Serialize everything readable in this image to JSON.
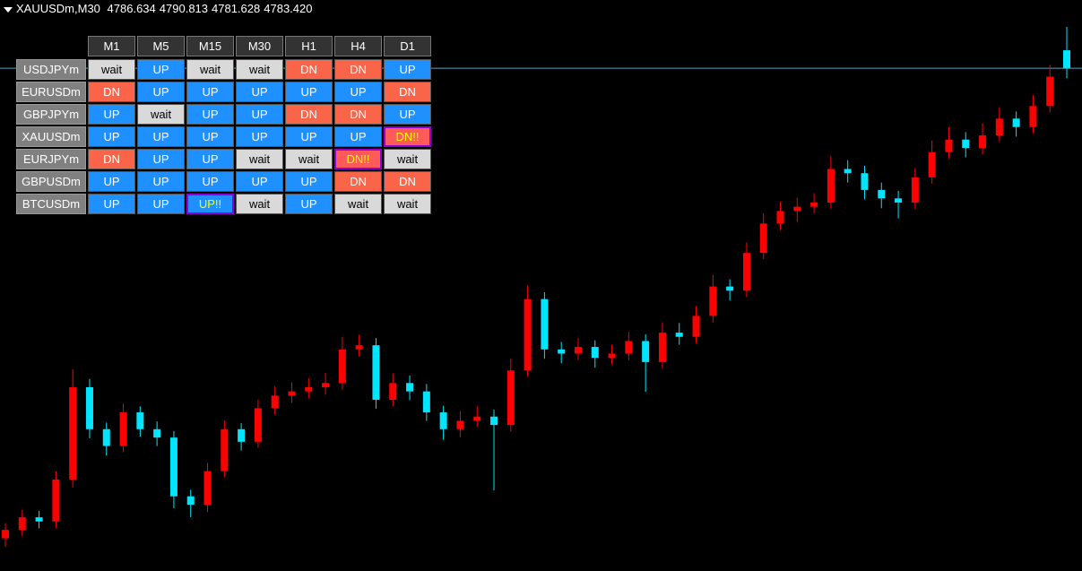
{
  "header": {
    "symbol": "XAUUSDm,M30",
    "open": "4786.634",
    "high": "4790.813",
    "low": "4781.628",
    "close": "4783.420"
  },
  "table": {
    "columns": [
      "M1",
      "M5",
      "M15",
      "M30",
      "H1",
      "H4",
      "D1"
    ],
    "rows": [
      {
        "symbol": "USDJPYm",
        "cells": [
          {
            "text": "wait",
            "bg": "#d9d9d9",
            "fg": "#000000"
          },
          {
            "text": "UP",
            "bg": "#1e90ff",
            "fg": "#ffffff"
          },
          {
            "text": "wait",
            "bg": "#d9d9d9",
            "fg": "#000000"
          },
          {
            "text": "wait",
            "bg": "#d9d9d9",
            "fg": "#000000"
          },
          {
            "text": "DN",
            "bg": "#fa6448",
            "fg": "#ffffff"
          },
          {
            "text": "DN",
            "bg": "#fa6448",
            "fg": "#ffffff"
          },
          {
            "text": "UP",
            "bg": "#1e90ff",
            "fg": "#ffffff"
          }
        ]
      },
      {
        "symbol": "EURUSDm",
        "cells": [
          {
            "text": "DN",
            "bg": "#fa6448",
            "fg": "#ffffff"
          },
          {
            "text": "UP",
            "bg": "#1e90ff",
            "fg": "#ffffff"
          },
          {
            "text": "UP",
            "bg": "#1e90ff",
            "fg": "#ffffff"
          },
          {
            "text": "UP",
            "bg": "#1e90ff",
            "fg": "#ffffff"
          },
          {
            "text": "UP",
            "bg": "#1e90ff",
            "fg": "#ffffff"
          },
          {
            "text": "UP",
            "bg": "#1e90ff",
            "fg": "#ffffff"
          },
          {
            "text": "DN",
            "bg": "#fa6448",
            "fg": "#ffffff"
          }
        ]
      },
      {
        "symbol": "GBPJPYm",
        "cells": [
          {
            "text": "UP",
            "bg": "#1e90ff",
            "fg": "#ffffff"
          },
          {
            "text": "wait",
            "bg": "#d9d9d9",
            "fg": "#000000"
          },
          {
            "text": "UP",
            "bg": "#1e90ff",
            "fg": "#ffffff"
          },
          {
            "text": "UP",
            "bg": "#1e90ff",
            "fg": "#ffffff"
          },
          {
            "text": "DN",
            "bg": "#fa6448",
            "fg": "#ffffff"
          },
          {
            "text": "DN",
            "bg": "#fa6448",
            "fg": "#ffffff"
          },
          {
            "text": "UP",
            "bg": "#1e90ff",
            "fg": "#ffffff"
          }
        ]
      },
      {
        "symbol": "XAUUSDm",
        "cells": [
          {
            "text": "UP",
            "bg": "#1e90ff",
            "fg": "#ffffff"
          },
          {
            "text": "UP",
            "bg": "#1e90ff",
            "fg": "#ffffff"
          },
          {
            "text": "UP",
            "bg": "#1e90ff",
            "fg": "#ffffff"
          },
          {
            "text": "UP",
            "bg": "#1e90ff",
            "fg": "#ffffff"
          },
          {
            "text": "UP",
            "bg": "#1e90ff",
            "fg": "#ffffff"
          },
          {
            "text": "UP",
            "bg": "#1e90ff",
            "fg": "#ffffff"
          },
          {
            "text": "DN!!",
            "bg": "#ff5a5a",
            "fg": "#ffff00",
            "border": "#9400d3"
          }
        ]
      },
      {
        "symbol": "EURJPYm",
        "cells": [
          {
            "text": "DN",
            "bg": "#fa6448",
            "fg": "#ffffff"
          },
          {
            "text": "UP",
            "bg": "#1e90ff",
            "fg": "#ffffff"
          },
          {
            "text": "UP",
            "bg": "#1e90ff",
            "fg": "#ffffff"
          },
          {
            "text": "wait",
            "bg": "#d9d9d9",
            "fg": "#000000"
          },
          {
            "text": "wait",
            "bg": "#d9d9d9",
            "fg": "#000000"
          },
          {
            "text": "DN!!",
            "bg": "#ff5a5a",
            "fg": "#ffff00",
            "border": "#9400d3"
          },
          {
            "text": "wait",
            "bg": "#d9d9d9",
            "fg": "#000000"
          }
        ]
      },
      {
        "symbol": "GBPUSDm",
        "cells": [
          {
            "text": "UP",
            "bg": "#1e90ff",
            "fg": "#ffffff"
          },
          {
            "text": "UP",
            "bg": "#1e90ff",
            "fg": "#ffffff"
          },
          {
            "text": "UP",
            "bg": "#1e90ff",
            "fg": "#ffffff"
          },
          {
            "text": "UP",
            "bg": "#1e90ff",
            "fg": "#ffffff"
          },
          {
            "text": "UP",
            "bg": "#1e90ff",
            "fg": "#ffffff"
          },
          {
            "text": "DN",
            "bg": "#fa6448",
            "fg": "#ffffff"
          },
          {
            "text": "DN",
            "bg": "#fa6448",
            "fg": "#ffffff"
          }
        ]
      },
      {
        "symbol": "BTCUSDm",
        "cells": [
          {
            "text": "UP",
            "bg": "#1e90ff",
            "fg": "#ffffff"
          },
          {
            "text": "UP",
            "bg": "#1e90ff",
            "fg": "#ffffff"
          },
          {
            "text": "UP!!",
            "bg": "#1e90ff",
            "fg": "#ffff00",
            "border": "#9400d3"
          },
          {
            "text": "wait",
            "bg": "#d9d9d9",
            "fg": "#000000"
          },
          {
            "text": "UP",
            "bg": "#1e90ff",
            "fg": "#ffffff"
          },
          {
            "text": "wait",
            "bg": "#d9d9d9",
            "fg": "#000000"
          },
          {
            "text": "wait",
            "bg": "#d9d9d9",
            "fg": "#000000"
          }
        ]
      }
    ]
  },
  "chart": {
    "type": "candlestick",
    "up_color": "#ff0000",
    "down_color": "#00e5ff",
    "price_line_color": "#5f9fbf",
    "candles": [
      [
        4699.42,
        4702.1,
        4697.9,
        4700.92
      ],
      [
        4700.92,
        4704.5,
        4699.8,
        4703.17
      ],
      [
        4703.17,
        4704.3,
        4701.2,
        4702.42
      ],
      [
        4702.42,
        4711.4,
        4701.3,
        4709.92
      ],
      [
        4709.92,
        4729.6,
        4708.5,
        4726.42
      ],
      [
        4726.42,
        4727.9,
        4717.3,
        4718.92
      ],
      [
        4718.92,
        4720.1,
        4714.2,
        4715.92
      ],
      [
        4715.92,
        4723.5,
        4714.8,
        4721.92
      ],
      [
        4721.92,
        4723.0,
        4717.6,
        4718.92
      ],
      [
        4718.92,
        4720.3,
        4715.9,
        4717.42
      ],
      [
        4717.42,
        4718.6,
        4704.8,
        4706.92
      ],
      [
        4706.92,
        4708.1,
        4703.2,
        4705.42
      ],
      [
        4705.42,
        4712.9,
        4704.1,
        4711.42
      ],
      [
        4711.42,
        4720.5,
        4710.3,
        4718.92
      ],
      [
        4718.92,
        4720.0,
        4715.1,
        4716.67
      ],
      [
        4716.67,
        4724.2,
        4715.6,
        4722.67
      ],
      [
        4722.67,
        4726.6,
        4721.5,
        4724.92
      ],
      [
        4724.92,
        4727.3,
        4723.6,
        4725.67
      ],
      [
        4725.67,
        4728.0,
        4724.4,
        4726.42
      ],
      [
        4726.42,
        4729.0,
        4725.1,
        4727.17
      ],
      [
        4727.17,
        4735.4,
        4726.0,
        4733.17
      ],
      [
        4733.17,
        4735.8,
        4731.9,
        4733.92
      ],
      [
        4733.92,
        4735.2,
        4722.6,
        4724.17
      ],
      [
        4724.17,
        4728.9,
        4723.0,
        4727.17
      ],
      [
        4727.17,
        4728.5,
        4724.1,
        4725.67
      ],
      [
        4725.67,
        4727.0,
        4720.4,
        4721.92
      ],
      [
        4721.92,
        4723.1,
        4717.0,
        4718.92
      ],
      [
        4718.92,
        4722.1,
        4717.5,
        4720.42
      ],
      [
        4720.42,
        4723.0,
        4719.3,
        4721.17
      ],
      [
        4721.17,
        4722.4,
        4708.0,
        4719.67
      ],
      [
        4719.67,
        4731.5,
        4718.5,
        4729.42
      ],
      [
        4729.42,
        4744.6,
        4728.3,
        4742.17
      ],
      [
        4742.17,
        4743.4,
        4731.5,
        4733.17
      ],
      [
        4733.17,
        4734.5,
        4730.7,
        4732.42
      ],
      [
        4732.42,
        4735.2,
        4731.3,
        4733.62
      ],
      [
        4733.62,
        4734.8,
        4729.9,
        4731.67
      ],
      [
        4731.67,
        4734.0,
        4730.5,
        4732.42
      ],
      [
        4732.42,
        4736.3,
        4731.2,
        4734.67
      ],
      [
        4734.67,
        4735.9,
        4725.6,
        4730.92
      ],
      [
        4730.92,
        4738.0,
        4729.8,
        4736.17
      ],
      [
        4736.17,
        4737.9,
        4734.0,
        4735.42
      ],
      [
        4735.42,
        4740.9,
        4734.3,
        4739.17
      ],
      [
        4739.17,
        4746.5,
        4738.0,
        4744.42
      ],
      [
        4744.42,
        4745.7,
        4741.9,
        4743.67
      ],
      [
        4743.67,
        4752.3,
        4742.5,
        4750.42
      ],
      [
        4750.42,
        4757.5,
        4749.3,
        4755.67
      ],
      [
        4755.67,
        4759.6,
        4754.5,
        4757.92
      ],
      [
        4757.92,
        4760.3,
        4756.0,
        4758.67
      ],
      [
        4758.67,
        4761.1,
        4757.5,
        4759.42
      ],
      [
        4759.42,
        4767.7,
        4758.3,
        4765.42
      ],
      [
        4765.42,
        4767.0,
        4763.0,
        4764.67
      ],
      [
        4764.67,
        4766.0,
        4760.0,
        4761.67
      ],
      [
        4761.67,
        4763.0,
        4758.4,
        4760.17
      ],
      [
        4760.17,
        4761.5,
        4756.6,
        4759.42
      ],
      [
        4759.42,
        4765.6,
        4758.3,
        4763.92
      ],
      [
        4763.92,
        4770.5,
        4762.8,
        4768.42
      ],
      [
        4768.42,
        4772.9,
        4767.3,
        4770.67
      ],
      [
        4770.67,
        4772.0,
        4767.5,
        4769.17
      ],
      [
        4769.17,
        4773.6,
        4768.0,
        4771.42
      ],
      [
        4771.42,
        4776.4,
        4770.3,
        4774.42
      ],
      [
        4774.42,
        4775.7,
        4771.2,
        4772.92
      ],
      [
        4772.92,
        4778.6,
        4771.8,
        4776.67
      ],
      [
        4776.67,
        4784.0,
        4775.5,
        4781.92
      ],
      [
        4786.634,
        4790.813,
        4781.628,
        4783.42
      ]
    ]
  }
}
